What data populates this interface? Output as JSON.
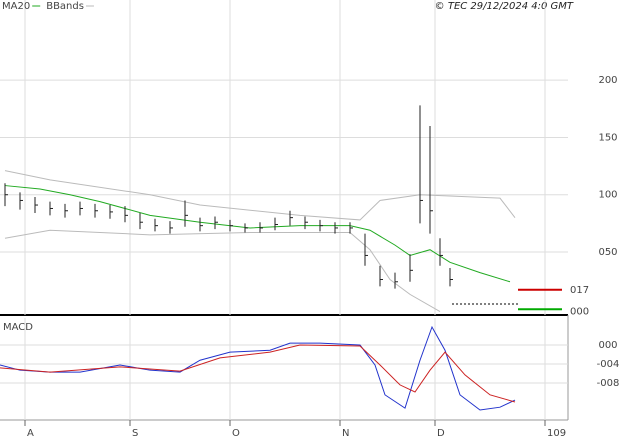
{
  "credit": "© TEC 29/12/2024 4:0 GMT",
  "chart_data": [
    {
      "type": "ohlc",
      "legend": [
        {
          "name": "MA20",
          "color": "#22aa22"
        },
        {
          "name": "BBands",
          "color": "#bbbbbb"
        }
      ],
      "xlim": [
        0,
        114
      ],
      "xticks": [
        {
          "value": 5,
          "label": "A"
        },
        {
          "value": 26,
          "label": "S"
        },
        {
          "value": 46,
          "label": "O"
        },
        {
          "value": 68,
          "label": "N"
        },
        {
          "value": 87,
          "label": "D"
        },
        109
      ],
      "ylim": [
        -5,
        270
      ],
      "yticks": [
        200,
        150,
        100,
        {
          "value": 50,
          "label": "050"
        }
      ],
      "grid": true,
      "x": [
        1,
        4,
        7,
        10,
        13,
        16,
        19,
        22,
        25,
        28,
        31,
        34,
        37,
        40,
        43,
        46,
        49,
        52,
        55,
        58,
        61,
        64,
        67,
        70,
        73,
        76,
        79,
        82,
        84,
        86,
        88,
        90
      ],
      "high": [
        110,
        102,
        98,
        94,
        92,
        94,
        92,
        91,
        90,
        84,
        79,
        77,
        95,
        80,
        81,
        78,
        75,
        76,
        80,
        86,
        81,
        78,
        76,
        76,
        66,
        38,
        32,
        48,
        178,
        160,
        62,
        36
      ],
      "low": [
        90,
        87,
        84,
        82,
        80,
        82,
        80,
        79,
        76,
        70,
        68,
        66,
        72,
        68,
        70,
        68,
        67,
        67,
        69,
        73,
        70,
        68,
        66,
        66,
        38,
        20,
        18,
        24,
        75,
        66,
        38,
        20
      ],
      "close": [
        100,
        95,
        91,
        88,
        86,
        88,
        86,
        85,
        82,
        76,
        73,
        71,
        82,
        73,
        76,
        73,
        71,
        71,
        74,
        80,
        76,
        73,
        71,
        71,
        47,
        26,
        24,
        34,
        95,
        86,
        47,
        26
      ],
      "bar_color": "#222222",
      "series": [
        {
          "name": "MA20",
          "color": "#22aa22",
          "x": [
            1,
            8,
            14,
            20,
            30,
            40,
            50,
            60,
            70,
            74,
            79,
            82,
            86,
            90,
            96,
            102
          ],
          "values": [
            108,
            105,
            100,
            94,
            82,
            76,
            71,
            73,
            73,
            69,
            56,
            47,
            52,
            41,
            32,
            24
          ]
        },
        {
          "name": "BBands",
          "color": "#bbbbbb",
          "x": [
            1,
            10,
            30,
            40,
            60,
            72,
            76,
            84,
            100,
            103
          ],
          "values": [
            121,
            113,
            100,
            91,
            82,
            78,
            95,
            100,
            97,
            80
          ]
        },
        {
          "name": "BBands",
          "color": "#bbbbbb",
          "x": [
            1,
            10,
            30,
            50,
            70,
            74,
            78,
            82,
            88
          ],
          "values": [
            62,
            69,
            65,
            67,
            67,
            52,
            26,
            13,
            -2
          ]
        }
      ],
      "markers": [
        {
          "value": 17,
          "label": "017",
          "color": "#cc0000"
        },
        {
          "value": 0,
          "label": "000",
          "color": "#00aa00"
        }
      ]
    },
    {
      "type": "line",
      "title": "MACD",
      "xlim": [
        0,
        114
      ],
      "ylim": [
        -15.8,
        5.7
      ],
      "yticks": [
        {
          "value": 0,
          "label": "000"
        },
        {
          "value": -4,
          "label": "-004"
        },
        {
          "value": -8,
          "label": "-008"
        }
      ],
      "grid": true,
      "series": [
        {
          "color": "#2233cc",
          "x": [
            0,
            4,
            10,
            16,
            24,
            30,
            36,
            40,
            46,
            54,
            58,
            64,
            72,
            75,
            77,
            81,
            84,
            86.4,
            89,
            92,
            96,
            100,
            103
          ],
          "values": [
            -4.2,
            -5.3,
            -5.7,
            -5.7,
            -4.2,
            -5.3,
            -5.7,
            -3.2,
            -1.5,
            -1.1,
            0.4,
            0.4,
            0,
            -4.2,
            -10.5,
            -13.3,
            -3.2,
            3.8,
            -1.1,
            -10.5,
            -13.7,
            -13.1,
            -11.6
          ]
        },
        {
          "color": "#cc2222",
          "x": [
            0,
            10,
            24,
            36,
            44,
            54,
            60,
            72,
            76,
            80,
            83,
            86,
            89,
            93,
            98,
            103
          ],
          "values": [
            -4.8,
            -5.7,
            -4.6,
            -5.5,
            -2.7,
            -1.5,
            0,
            -0.2,
            -4.2,
            -8.4,
            -9.9,
            -5.3,
            -1.5,
            -6.3,
            -10.5,
            -12
          ]
        }
      ]
    }
  ]
}
